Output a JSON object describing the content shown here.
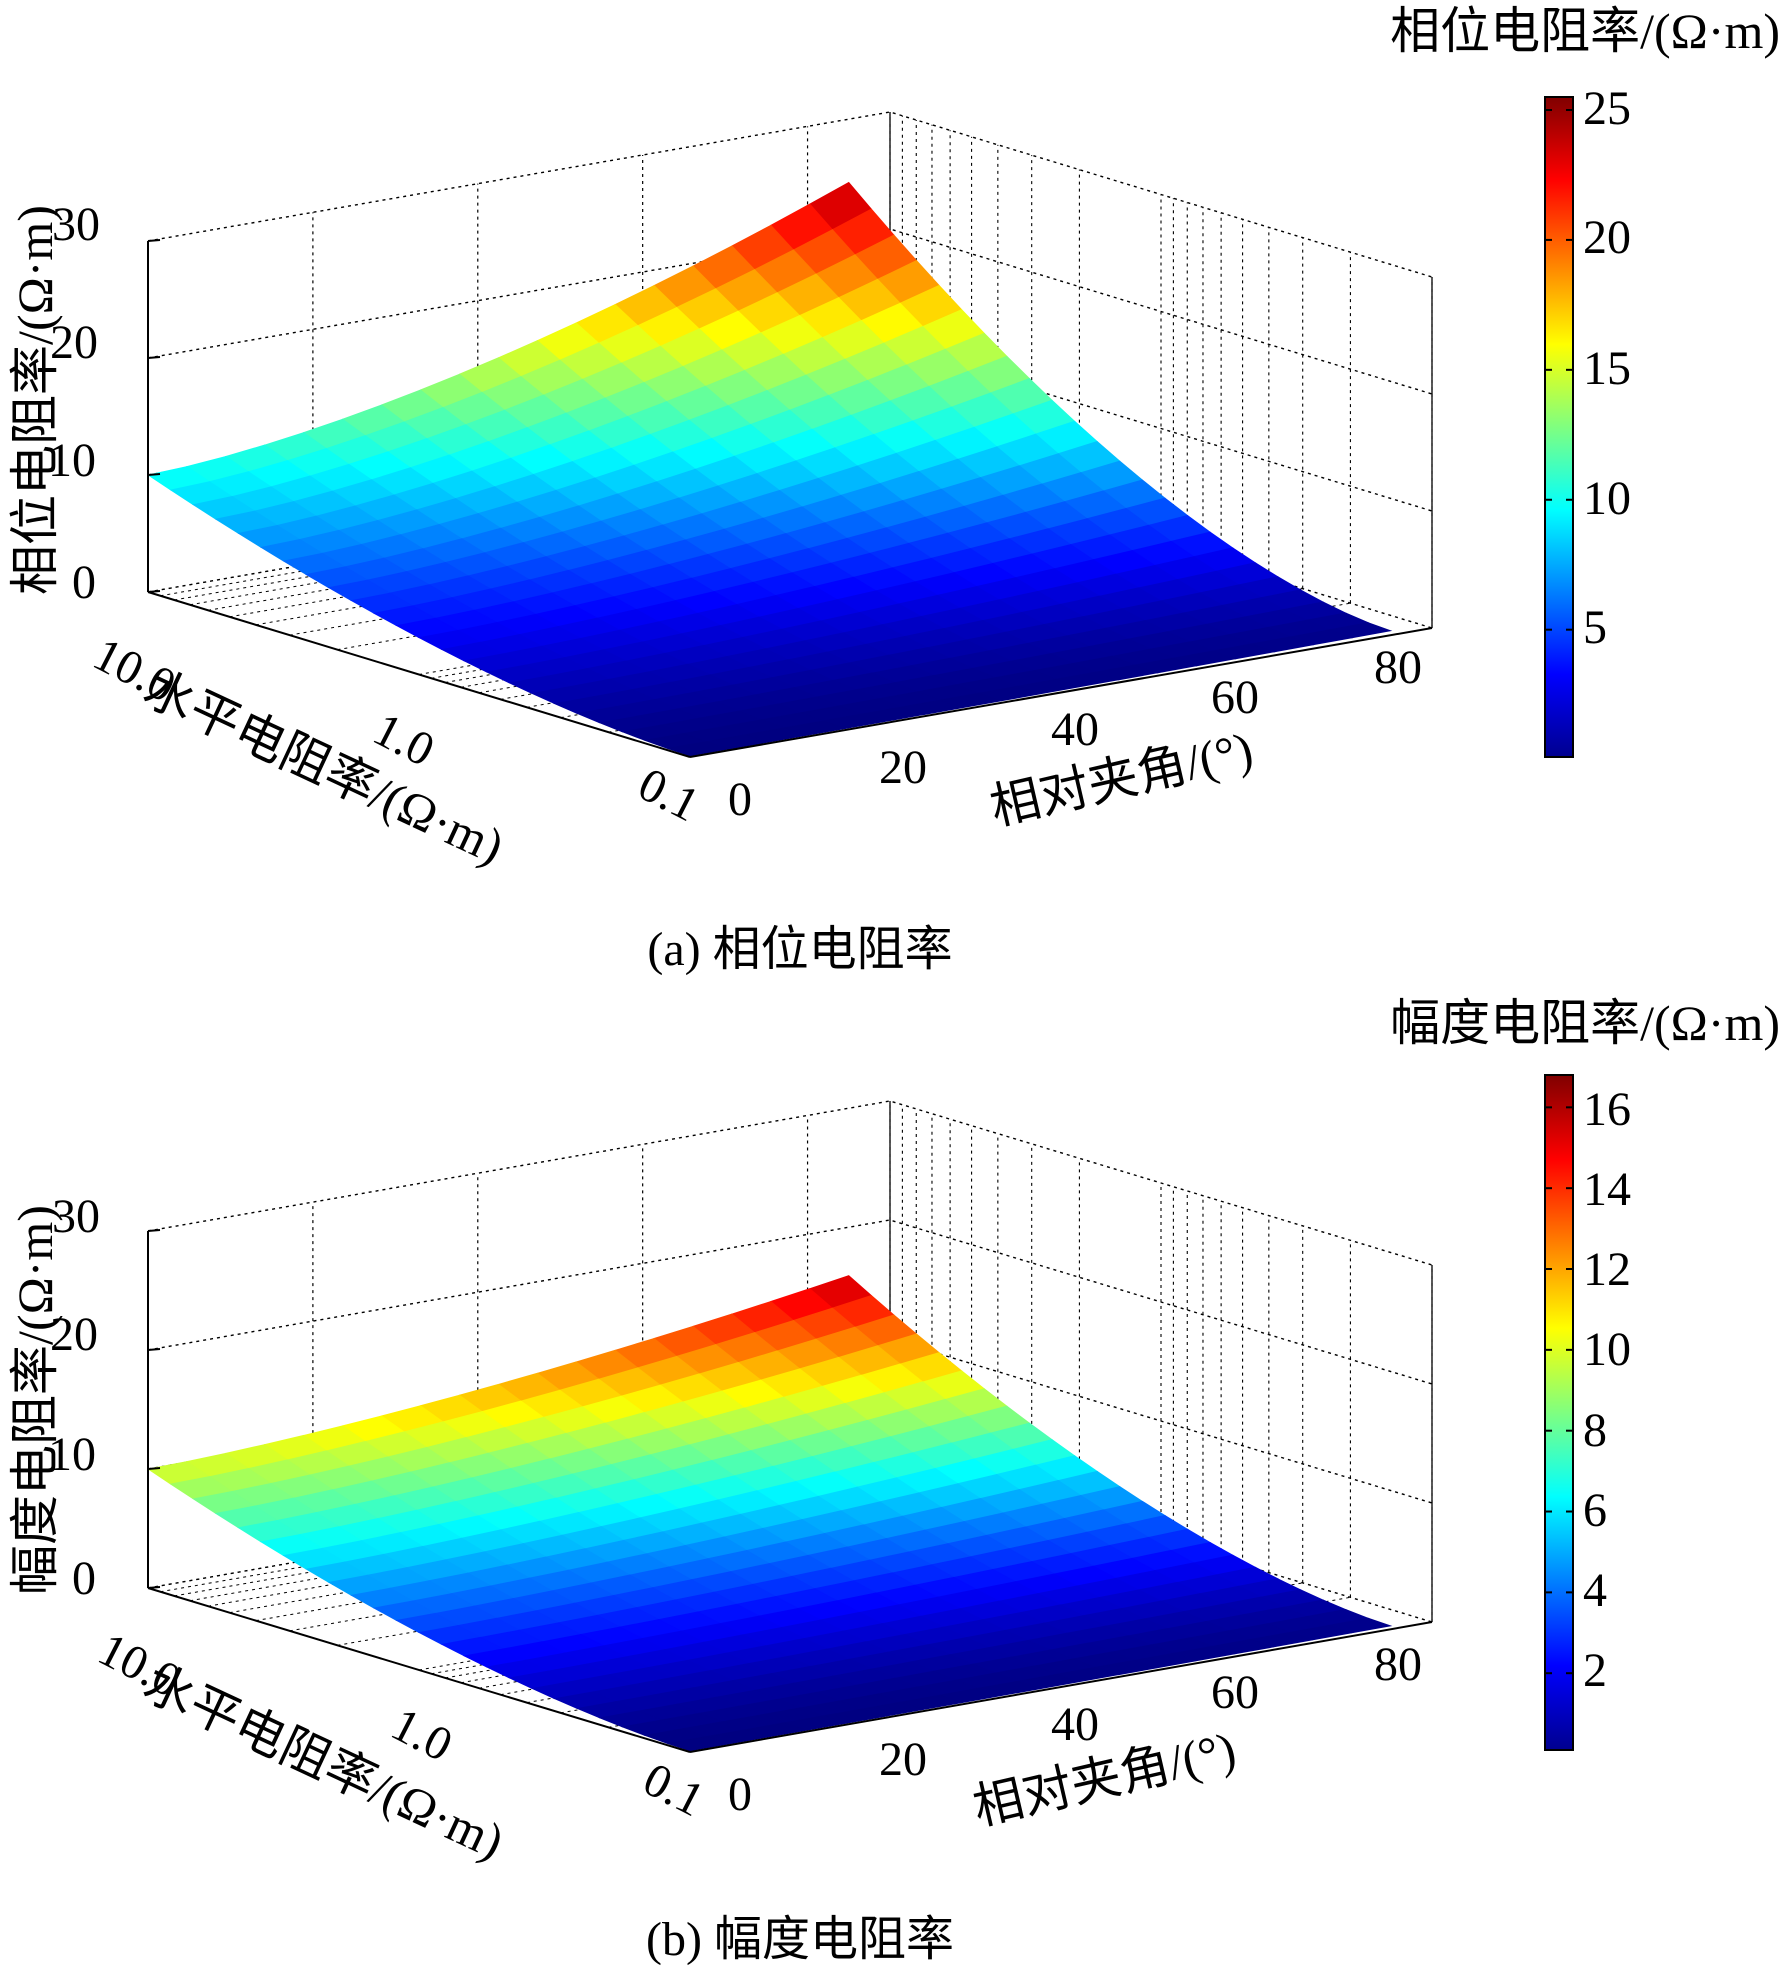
{
  "chart_data": [
    {
      "type": "surface3d",
      "caption": "(a) 相位电阻率",
      "zlabel": "相位电阻率/(Ω·m)",
      "xlabel": "相对夹角/(°)",
      "ylabel": "水平电阻率/(Ω·m)",
      "colorbar_title": "相位电阻率/(Ω·m)",
      "colormap": "jet",
      "x_angle_deg": [
        0,
        5,
        10,
        15,
        20,
        25,
        30,
        35,
        40,
        45,
        50,
        55,
        60,
        65,
        70,
        75,
        80,
        85
      ],
      "y_horizontal_resistivity": [
        10.0,
        5.0,
        3.0,
        2.0,
        1.0,
        0.5,
        0.2,
        0.1
      ],
      "y_scale": "log",
      "y_ticks": [
        "10.0",
        "1.0",
        "0.1"
      ],
      "x_ticks": [
        "0",
        "20",
        "40",
        "60",
        "80"
      ],
      "z_ticks": [
        "0",
        "10",
        "20",
        "30"
      ],
      "zlim": [
        0,
        30
      ],
      "clim": [
        0.1,
        25.5
      ],
      "colorbar_ticks": [
        "5",
        "10",
        "15",
        "20",
        "25"
      ],
      "surface_endpoints": {
        "rh10_angle0": 10.0,
        "rh10_angle85": 26.0,
        "rh0p1_angle0": 0.1,
        "rh0p1_angle85": 0.4
      },
      "grid": true
    },
    {
      "type": "surface3d",
      "caption": "(b) 幅度电阻率",
      "zlabel": "幅度电阻率/(Ω·m)",
      "xlabel": "相对夹角/(°)",
      "ylabel": "水平电阻率/(Ω·m)",
      "colorbar_title": "幅度电阻率/(Ω·m)",
      "colormap": "jet",
      "x_angle_deg": [
        0,
        5,
        10,
        15,
        20,
        25,
        30,
        35,
        40,
        45,
        50,
        55,
        60,
        65,
        70,
        75,
        80,
        85
      ],
      "y_horizontal_resistivity": [
        10.0,
        5.0,
        3.0,
        2.0,
        1.0,
        0.5,
        0.2,
        0.1
      ],
      "y_scale": "log",
      "y_ticks": [
        "10.0",
        "1.0",
        "0.1"
      ],
      "x_ticks": [
        "20",
        "40",
        "60",
        "80"
      ],
      "x_ticks_corner": "0",
      "z_ticks": [
        "0",
        "10",
        "20",
        "30"
      ],
      "zlim": [
        0,
        30
      ],
      "clim": [
        0.1,
        16.8
      ],
      "colorbar_ticks": [
        "2",
        "4",
        "6",
        "8",
        "10",
        "12",
        "14",
        "16"
      ],
      "surface_endpoints": {
        "rh10_angle0": 10.0,
        "rh10_angle85": 16.5,
        "rh0p1_angle0": 0.1,
        "rh0p1_angle85": 0.3
      },
      "grid": true
    }
  ]
}
